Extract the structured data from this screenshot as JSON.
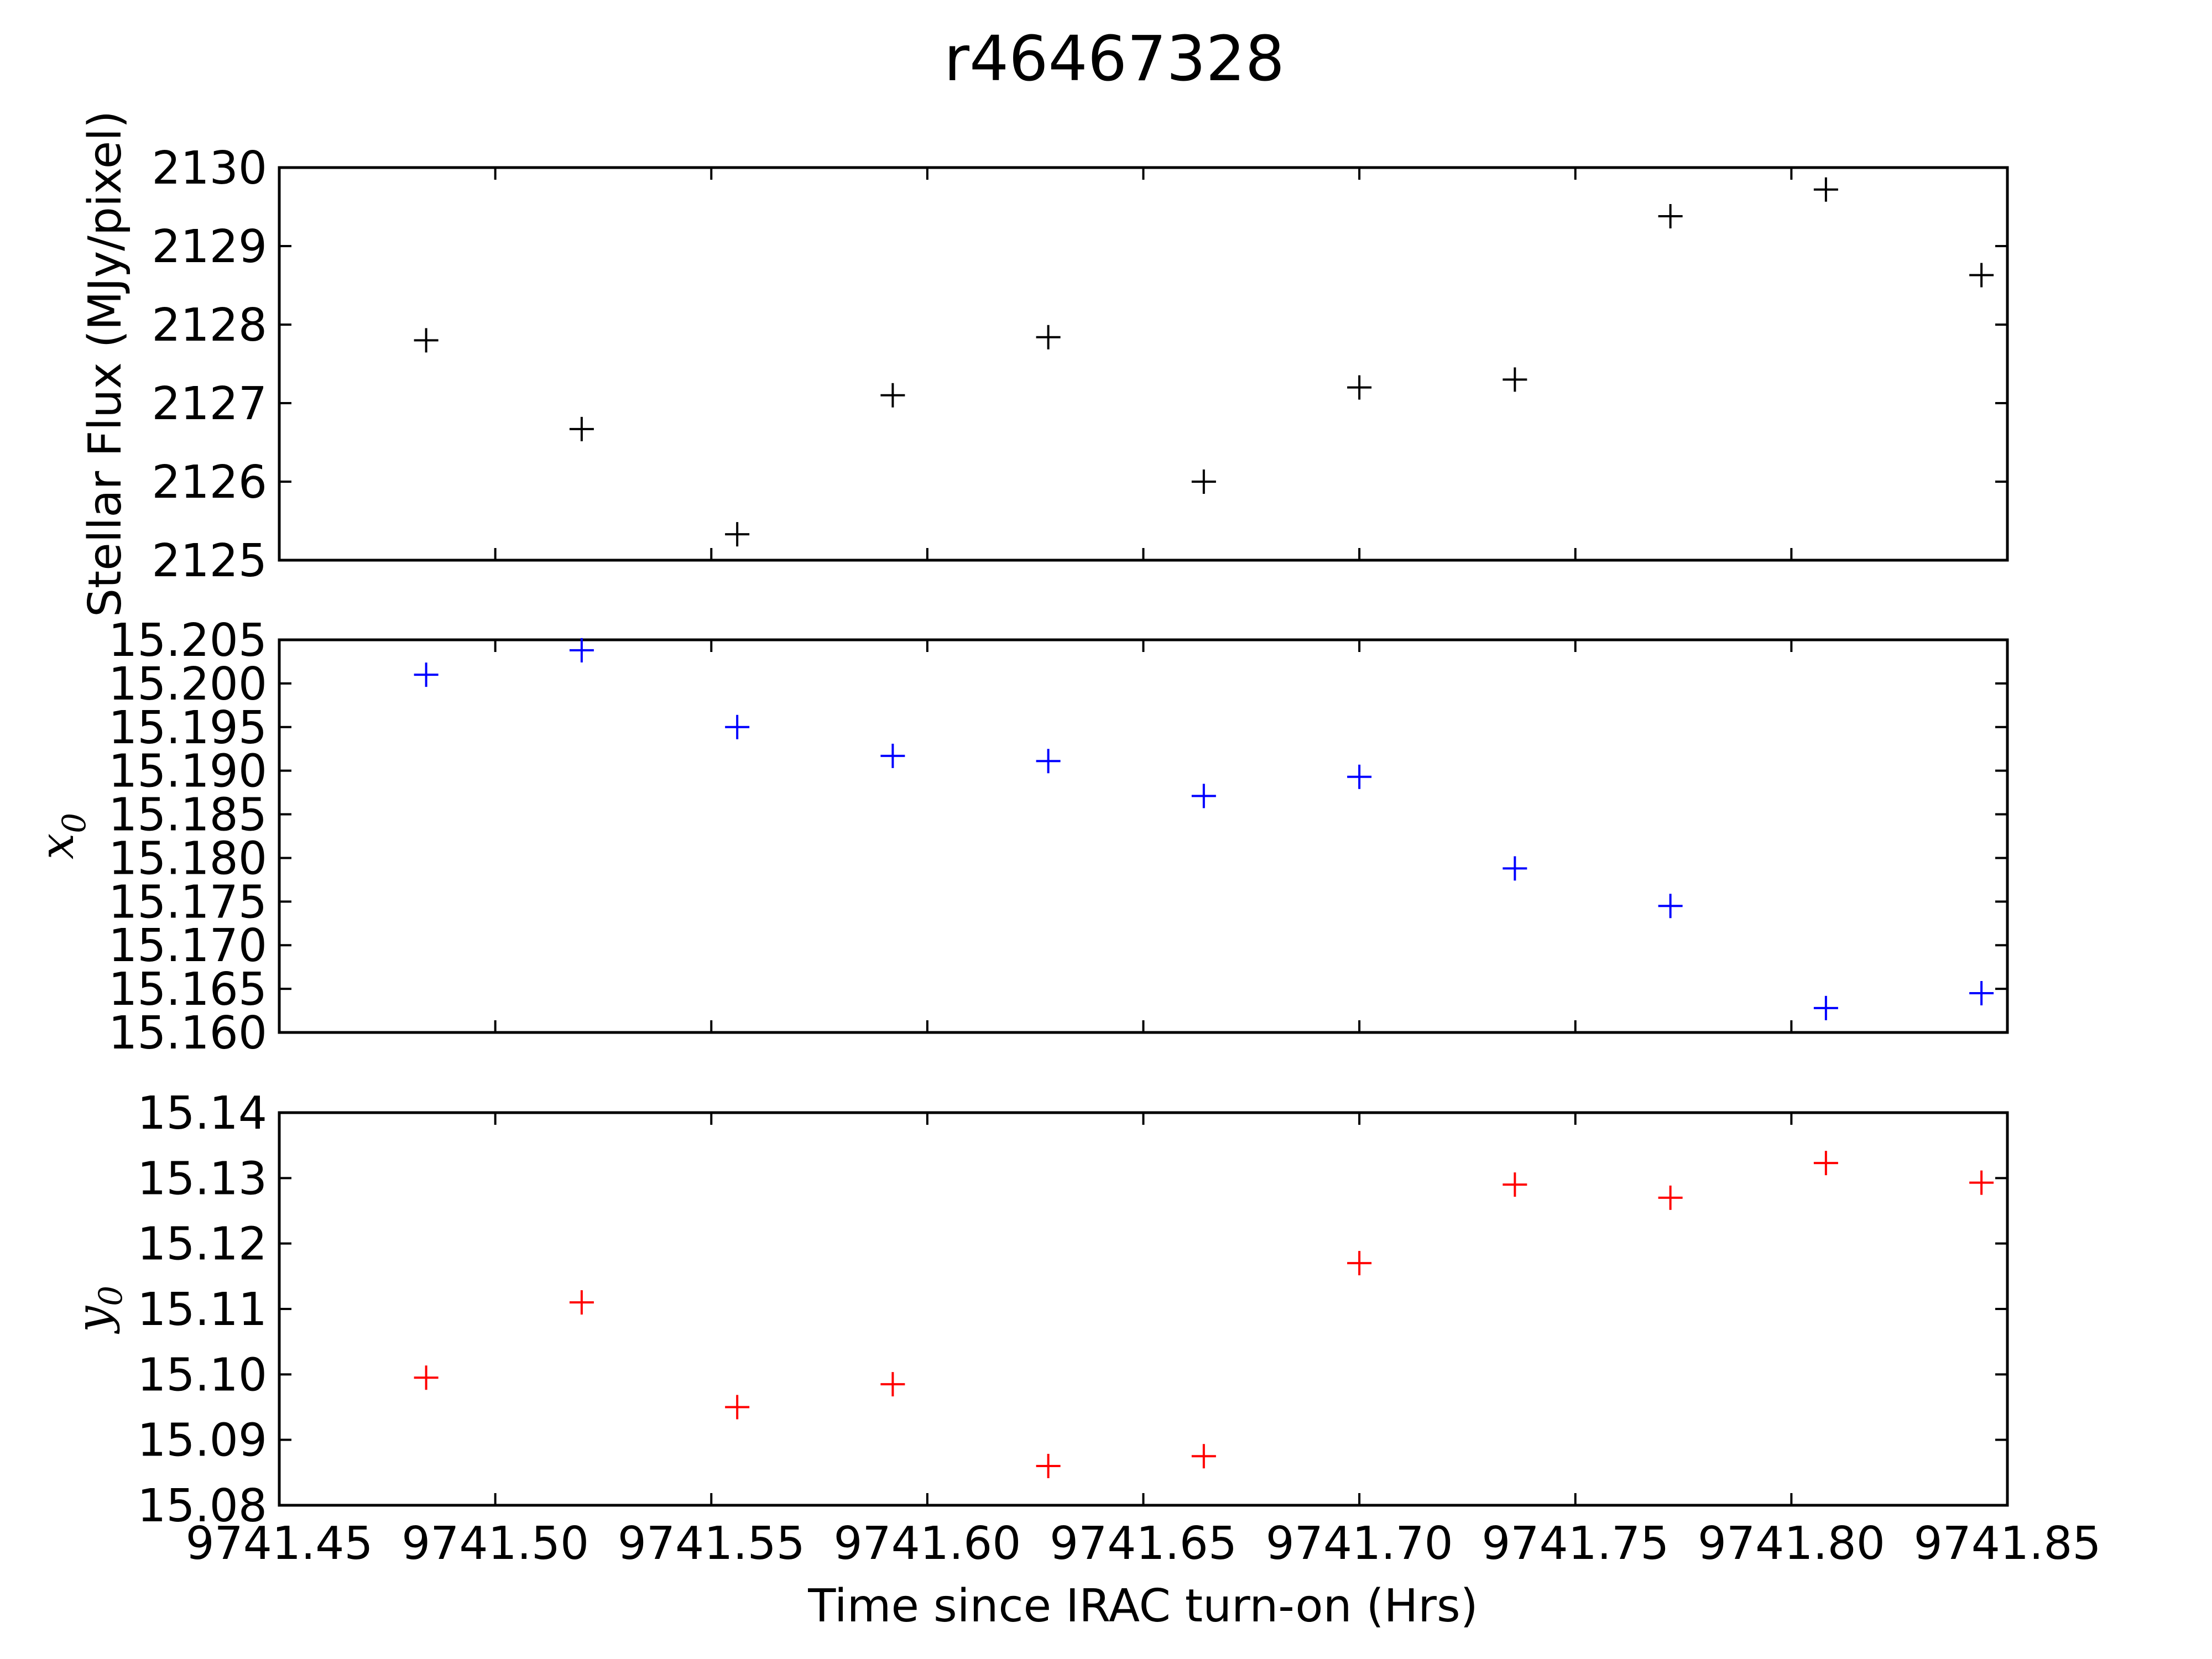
{
  "figure": {
    "title": "r46467328",
    "xlabel": "Time since IRAC turn-on (Hrs)"
  },
  "chart_data": [
    {
      "type": "scatter",
      "ylabel": "Stellar Flux (MJy/pixel)",
      "marker": "+",
      "color": "#000000",
      "xlim": [
        9741.45,
        9741.85
      ],
      "ylim": [
        2125,
        2130
      ],
      "yticks": [
        "2125",
        "2126",
        "2127",
        "2128",
        "2129",
        "2130"
      ],
      "x": [
        9741.484,
        9741.52,
        9741.556,
        9741.592,
        9741.628,
        9741.664,
        9741.7,
        9741.736,
        9741.772,
        9741.808,
        9741.844
      ],
      "y": [
        2127.8,
        2126.67,
        2125.33,
        2127.1,
        2127.84,
        2126.0,
        2127.2,
        2127.3,
        2129.38,
        2129.72,
        2128.63
      ]
    },
    {
      "type": "scatter",
      "ylabel_base": "x",
      "ylabel_sub": "0",
      "marker": "+",
      "color": "#0000ff",
      "xlim": [
        9741.45,
        9741.85
      ],
      "ylim": [
        15.16,
        15.205
      ],
      "yticks": [
        "15.160",
        "15.165",
        "15.170",
        "15.175",
        "15.180",
        "15.185",
        "15.190",
        "15.195",
        "15.200",
        "15.205"
      ],
      "x": [
        9741.484,
        9741.52,
        9741.556,
        9741.592,
        9741.628,
        9741.664,
        9741.7,
        9741.736,
        9741.772,
        9741.808,
        9741.844
      ],
      "y": [
        15.201,
        15.2038,
        15.195,
        15.1917,
        15.1911,
        15.1871,
        15.1893,
        15.1788,
        15.1745,
        15.1628,
        15.1645
      ]
    },
    {
      "type": "scatter",
      "ylabel_base": "y",
      "ylabel_sub": "0",
      "marker": "+",
      "color": "#ff0000",
      "xlim": [
        9741.45,
        9741.85
      ],
      "ylim": [
        15.08,
        15.14
      ],
      "yticks": [
        "15.08",
        "15.09",
        "15.10",
        "15.11",
        "15.12",
        "15.13",
        "15.14"
      ],
      "xticks": [
        "9741.45",
        "9741.50",
        "9741.55",
        "9741.60",
        "9741.65",
        "9741.70",
        "9741.75",
        "9741.80",
        "9741.85"
      ],
      "x": [
        9741.484,
        9741.52,
        9741.556,
        9741.592,
        9741.628,
        9741.664,
        9741.7,
        9741.736,
        9741.772,
        9741.808,
        9741.844
      ],
      "y": [
        15.0995,
        15.111,
        15.095,
        15.0985,
        15.086,
        15.0875,
        15.117,
        15.129,
        15.127,
        15.1323,
        15.1293
      ]
    }
  ]
}
